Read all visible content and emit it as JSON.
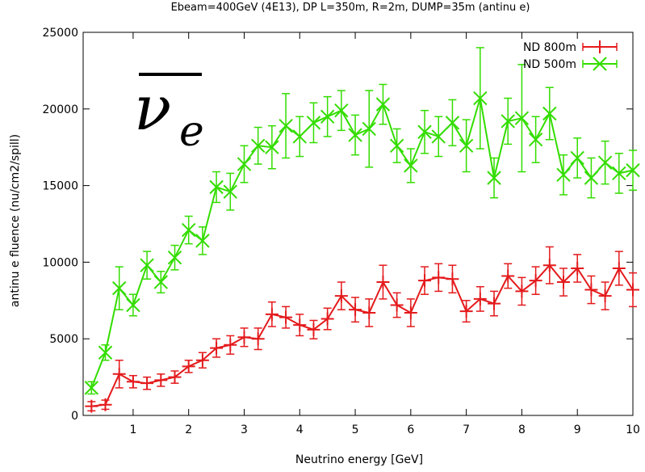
{
  "chart_data": {
    "type": "line",
    "title": "Ebeam=400GeV (4E13), DP L=350m, R=2m, DUMP=35m (antinu e)",
    "xlabel": "Neutrino energy [GeV]",
    "ylabel": "antinu e fluence (nu/cm2/spill)",
    "annotation": {
      "base": "ν",
      "subscript": "e"
    },
    "xlim": [
      0.1,
      10
    ],
    "ylim": [
      0,
      25000
    ],
    "xticks": [
      1,
      2,
      3,
      4,
      5,
      6,
      7,
      8,
      9,
      10
    ],
    "yticks": [
      0,
      5000,
      10000,
      15000,
      20000,
      25000
    ],
    "grid": false,
    "legend_position": "top-right",
    "series": [
      {
        "name": "ND 800m",
        "color": "#e41a1c",
        "marker": "plus",
        "points": [
          [
            0.25,
            600,
            300
          ],
          [
            0.5,
            700,
            300
          ],
          [
            0.75,
            2700,
            900
          ],
          [
            1.0,
            2200,
            400
          ],
          [
            1.25,
            2100,
            400
          ],
          [
            1.5,
            2300,
            400
          ],
          [
            1.75,
            2500,
            400
          ],
          [
            2.0,
            3200,
            400
          ],
          [
            2.25,
            3600,
            500
          ],
          [
            2.5,
            4400,
            600
          ],
          [
            2.75,
            4600,
            600
          ],
          [
            3.0,
            5100,
            600
          ],
          [
            3.25,
            5000,
            700
          ],
          [
            3.5,
            6600,
            800
          ],
          [
            3.75,
            6400,
            700
          ],
          [
            4.0,
            5900,
            700
          ],
          [
            4.25,
            5600,
            600
          ],
          [
            4.5,
            6300,
            700
          ],
          [
            4.75,
            7800,
            900
          ],
          [
            5.0,
            6900,
            800
          ],
          [
            5.25,
            6700,
            900
          ],
          [
            5.5,
            8700,
            1100
          ],
          [
            5.75,
            7200,
            800
          ],
          [
            6.0,
            6700,
            900
          ],
          [
            6.25,
            8800,
            900
          ],
          [
            6.5,
            9000,
            900
          ],
          [
            6.75,
            8900,
            900
          ],
          [
            7.0,
            6800,
            700
          ],
          [
            7.25,
            7600,
            800
          ],
          [
            7.5,
            7300,
            800
          ],
          [
            7.75,
            9100,
            800
          ],
          [
            8.0,
            8100,
            900
          ],
          [
            8.25,
            8800,
            900
          ],
          [
            8.5,
            9800,
            1200
          ],
          [
            8.75,
            8700,
            900
          ],
          [
            9.0,
            9600,
            900
          ],
          [
            9.25,
            8200,
            900
          ],
          [
            9.5,
            7800,
            900
          ],
          [
            9.75,
            9600,
            1100
          ],
          [
            10.0,
            8200,
            1100
          ]
        ]
      },
      {
        "name": "ND 500m",
        "color": "#33dd00",
        "marker": "cross",
        "points": [
          [
            0.25,
            1800,
            400
          ],
          [
            0.5,
            4100,
            500
          ],
          [
            0.75,
            8300,
            1400
          ],
          [
            1.0,
            7200,
            700
          ],
          [
            1.25,
            9800,
            900
          ],
          [
            1.5,
            8700,
            700
          ],
          [
            1.75,
            10300,
            800
          ],
          [
            2.0,
            12100,
            900
          ],
          [
            2.25,
            11400,
            900
          ],
          [
            2.5,
            14900,
            1000
          ],
          [
            2.75,
            14600,
            1200
          ],
          [
            3.0,
            16400,
            1200
          ],
          [
            3.25,
            17600,
            1200
          ],
          [
            3.5,
            17500,
            1400
          ],
          [
            3.75,
            18900,
            2100
          ],
          [
            4.0,
            18200,
            1300
          ],
          [
            4.25,
            19100,
            1300
          ],
          [
            4.5,
            19500,
            1300
          ],
          [
            4.75,
            19900,
            1300
          ],
          [
            5.0,
            18300,
            1300
          ],
          [
            5.25,
            18700,
            2500
          ],
          [
            5.5,
            20300,
            1300
          ],
          [
            5.75,
            17600,
            1100
          ],
          [
            6.0,
            16300,
            1100
          ],
          [
            6.25,
            18500,
            1400
          ],
          [
            6.5,
            18200,
            1300
          ],
          [
            6.75,
            19100,
            1500
          ],
          [
            7.0,
            17600,
            1700
          ],
          [
            7.25,
            20700,
            3300
          ],
          [
            7.5,
            15500,
            1300
          ],
          [
            7.75,
            19200,
            1500
          ],
          [
            8.0,
            19400,
            3500
          ],
          [
            8.25,
            18000,
            1500
          ],
          [
            8.5,
            19700,
            1700
          ],
          [
            8.75,
            15700,
            1300
          ],
          [
            9.0,
            16800,
            1300
          ],
          [
            9.25,
            15500,
            1300
          ],
          [
            9.5,
            16500,
            1400
          ],
          [
            9.75,
            15800,
            1300
          ],
          [
            10.0,
            16000,
            1300
          ]
        ]
      }
    ]
  }
}
